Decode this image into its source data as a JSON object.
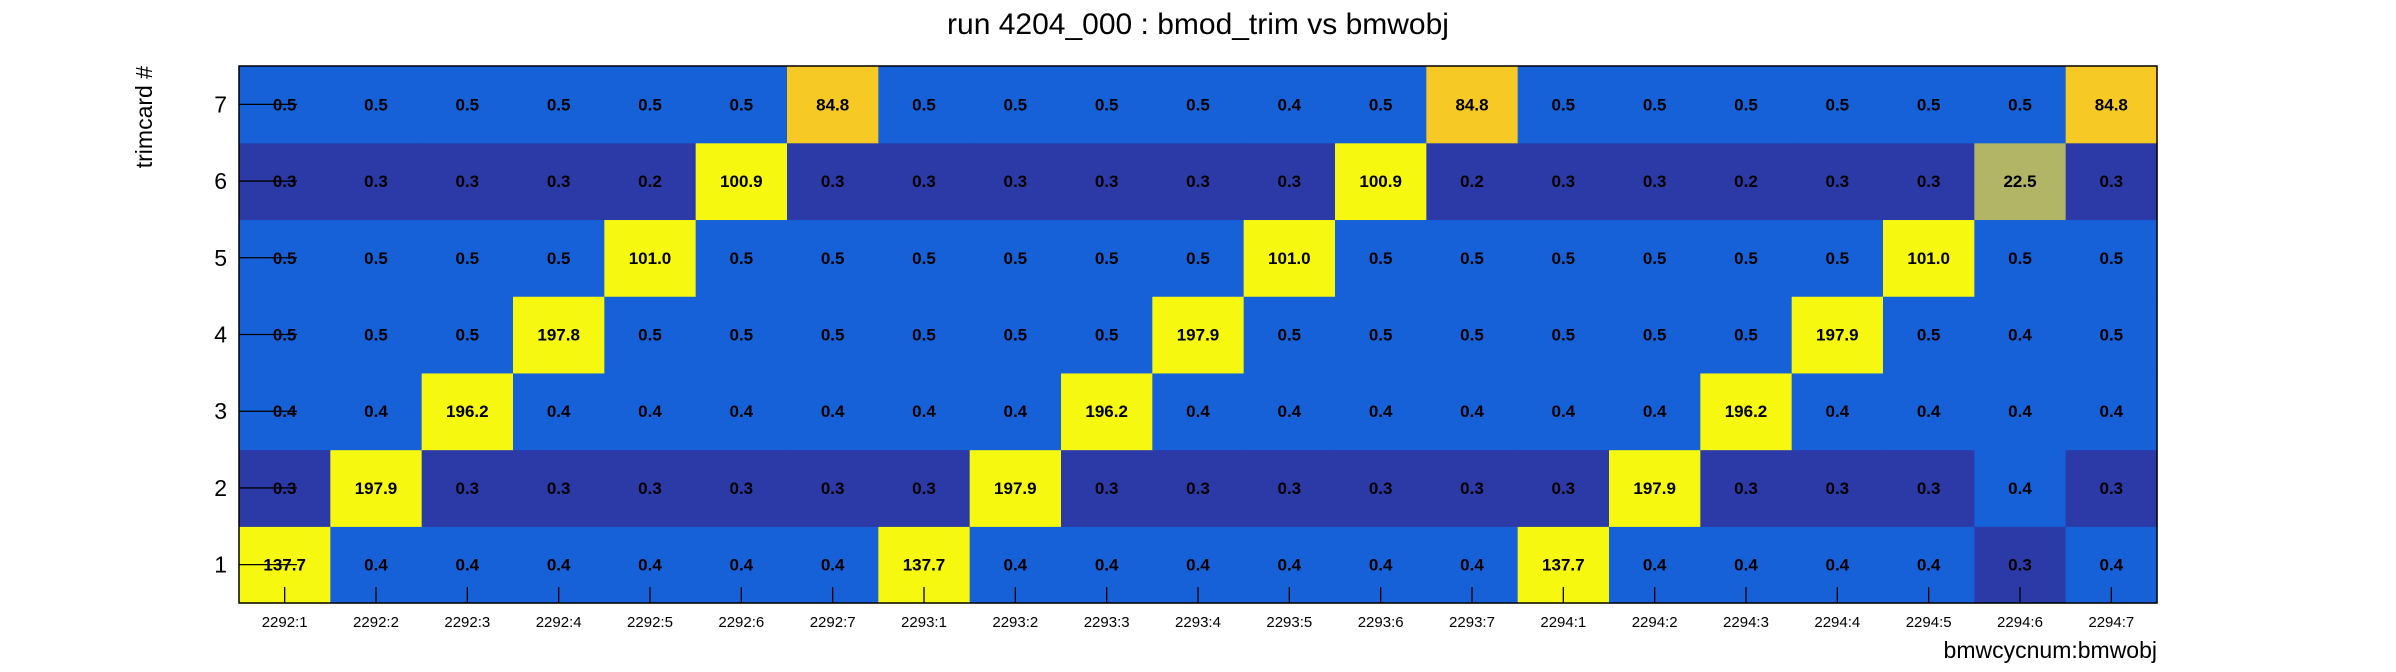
{
  "chart_data": {
    "type": "heatmap",
    "title": "run 4204_000 : bmod_trim vs bmwobj",
    "xlabel": "bmwcycnum:bmwobj",
    "ylabel": "trimcard #",
    "x_categories": [
      "2292:1",
      "2292:2",
      "2292:3",
      "2292:4",
      "2292:5",
      "2292:6",
      "2292:7",
      "2293:1",
      "2293:2",
      "2293:3",
      "2293:4",
      "2293:5",
      "2293:6",
      "2293:7",
      "2294:1",
      "2294:2",
      "2294:3",
      "2294:4",
      "2294:5",
      "2294:6",
      "2294:7"
    ],
    "y_categories": [
      "1",
      "2",
      "3",
      "4",
      "5",
      "6",
      "7"
    ],
    "grid": false,
    "colors": {
      "low": "#2b3aa6",
      "mid_low": "#1660d8",
      "mid": "#b2b565",
      "high": "#f6c924",
      "max": "#f6f90f"
    },
    "values": [
      [
        "137.7",
        "0.4",
        "0.4",
        "0.4",
        "0.4",
        "0.4",
        "0.4",
        "137.7",
        "0.4",
        "0.4",
        "0.4",
        "0.4",
        "0.4",
        "0.4",
        "137.7",
        "0.4",
        "0.4",
        "0.4",
        "0.4",
        "0.3",
        "0.4"
      ],
      [
        "0.3",
        "197.9",
        "0.3",
        "0.3",
        "0.3",
        "0.3",
        "0.3",
        "0.3",
        "197.9",
        "0.3",
        "0.3",
        "0.3",
        "0.3",
        "0.3",
        "0.3",
        "197.9",
        "0.3",
        "0.3",
        "0.3",
        "0.4",
        "0.3"
      ],
      [
        "0.4",
        "0.4",
        "196.2",
        "0.4",
        "0.4",
        "0.4",
        "0.4",
        "0.4",
        "0.4",
        "196.2",
        "0.4",
        "0.4",
        "0.4",
        "0.4",
        "0.4",
        "0.4",
        "196.2",
        "0.4",
        "0.4",
        "0.4",
        "0.4"
      ],
      [
        "0.5",
        "0.5",
        "0.5",
        "197.8",
        "0.5",
        "0.5",
        "0.5",
        "0.5",
        "0.5",
        "0.5",
        "197.9",
        "0.5",
        "0.5",
        "0.5",
        "0.5",
        "0.5",
        "0.5",
        "197.9",
        "0.5",
        "0.4",
        "0.5"
      ],
      [
        "0.5",
        "0.5",
        "0.5",
        "0.5",
        "101.0",
        "0.5",
        "0.5",
        "0.5",
        "0.5",
        "0.5",
        "0.5",
        "101.0",
        "0.5",
        "0.5",
        "0.5",
        "0.5",
        "0.5",
        "0.5",
        "101.0",
        "0.5",
        "0.5"
      ],
      [
        "0.3",
        "0.3",
        "0.3",
        "0.3",
        "0.2",
        "100.9",
        "0.3",
        "0.3",
        "0.3",
        "0.3",
        "0.3",
        "0.3",
        "100.9",
        "0.2",
        "0.3",
        "0.3",
        "0.2",
        "0.3",
        "0.3",
        "22.5",
        "0.3"
      ],
      [
        "0.5",
        "0.5",
        "0.5",
        "0.5",
        "0.5",
        "0.5",
        "84.8",
        "0.5",
        "0.5",
        "0.5",
        "0.5",
        "0.4",
        "0.5",
        "84.8",
        "0.5",
        "0.5",
        "0.5",
        "0.5",
        "0.5",
        "0.5",
        "84.8"
      ]
    ]
  }
}
